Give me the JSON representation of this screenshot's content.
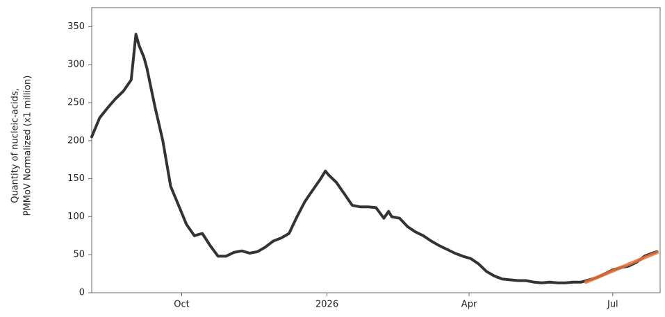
{
  "chart_data": {
    "type": "line",
    "ylabel": [
      "Quantity of nucleic-acids,",
      "PMMoV Normalized (x1 million)"
    ],
    "xlim": [
      0,
      360
    ],
    "ylim": [
      0,
      375
    ],
    "xticks": [
      {
        "value": 57,
        "label": "Oct"
      },
      {
        "value": 149,
        "label": "2026"
      },
      {
        "value": 239,
        "label": "Apr"
      },
      {
        "value": 330,
        "label": "Jul"
      }
    ],
    "yticks": [
      0,
      50,
      100,
      150,
      200,
      250,
      300,
      350
    ],
    "series": [
      {
        "color": "#333333",
        "width": 4,
        "x": [
          0,
          5,
          10,
          15,
          20,
          25,
          28,
          30,
          33,
          35,
          40,
          45,
          50,
          55,
          60,
          65,
          70,
          75,
          80,
          85,
          90,
          95,
          100,
          105,
          110,
          115,
          120,
          125,
          130,
          135,
          140,
          145,
          148,
          150,
          155,
          160,
          165,
          170,
          175,
          180,
          185,
          188,
          190,
          195,
          200,
          205,
          210,
          215,
          220,
          225,
          230,
          235,
          240,
          245,
          250,
          255,
          260,
          265,
          270,
          275,
          280,
          285,
          290,
          295,
          300,
          305,
          310,
          315,
          320,
          325,
          330,
          335,
          340,
          345,
          350,
          355,
          358
        ],
        "values": [
          205,
          230,
          243,
          255,
          265,
          280,
          340,
          325,
          310,
          295,
          245,
          200,
          140,
          115,
          90,
          75,
          78,
          62,
          48,
          48,
          53,
          55,
          52,
          54,
          60,
          68,
          72,
          78,
          100,
          120,
          135,
          150,
          160,
          155,
          145,
          130,
          115,
          113,
          113,
          112,
          98,
          107,
          100,
          98,
          87,
          80,
          75,
          68,
          62,
          57,
          52,
          48,
          45,
          38,
          28,
          22,
          18,
          17,
          16,
          16,
          14,
          13,
          14,
          13,
          13,
          14,
          14,
          17,
          20,
          25,
          30,
          33,
          35,
          40,
          48,
          52,
          54
        ]
      },
      {
        "color": "#e8733a",
        "width": 5,
        "opacity": 0.85,
        "x": [
          313,
          358
        ],
        "values": [
          14,
          53
        ]
      }
    ]
  }
}
